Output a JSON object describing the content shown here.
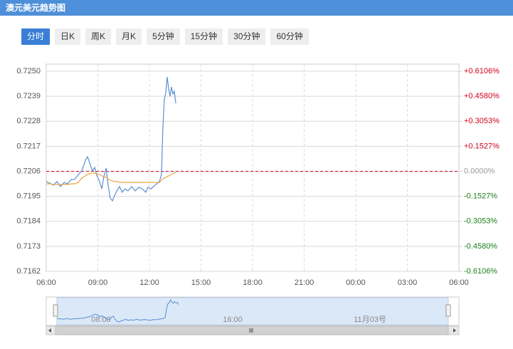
{
  "header": {
    "title": "澳元美元趋势图"
  },
  "tabs": [
    "分时",
    "日K",
    "周K",
    "月K",
    "5分钟",
    "15分钟",
    "30分钟",
    "60分钟"
  ],
  "active_tab": 0,
  "chart_data": {
    "type": "line",
    "x": [
      "06:00",
      "06:12",
      "06:25",
      "06:37",
      "06:50",
      "07:02",
      "07:14",
      "07:27",
      "07:39",
      "07:52",
      "08:04",
      "08:17",
      "08:24",
      "08:31",
      "08:41",
      "08:49",
      "08:56",
      "09:06",
      "09:14",
      "09:21",
      "09:29",
      "09:36",
      "09:43",
      "09:51",
      "09:58",
      "10:06",
      "10:16",
      "10:25",
      "10:35",
      "10:45",
      "10:58",
      "11:10",
      "11:23",
      "11:35",
      "11:47",
      "11:55",
      "12:05",
      "12:15",
      "12:25",
      "12:35",
      "12:42",
      "12:47",
      "12:52",
      "12:57",
      "13:02",
      "13:07",
      "13:12",
      "13:17",
      "13:22",
      "13:27",
      "13:32"
    ],
    "series": [
      {
        "color": "#5b8fd3",
        "values": [
          0.72015,
          0.72008,
          0.71999,
          0.72015,
          0.71993,
          0.72011,
          0.72005,
          0.72024,
          0.72024,
          0.72046,
          0.72062,
          0.72109,
          0.72124,
          0.72099,
          0.72062,
          0.72077,
          0.72043,
          0.72015,
          0.71983,
          0.72037,
          0.72074,
          0.71999,
          0.71943,
          0.7193,
          0.71952,
          0.71974,
          0.71993,
          0.71968,
          0.71983,
          0.71974,
          0.71993,
          0.71974,
          0.7199,
          0.71983,
          0.71968,
          0.7199,
          0.71983,
          0.71993,
          0.72005,
          0.72015,
          0.72046,
          0.72249,
          0.72375,
          0.72406,
          0.72475,
          0.72422,
          0.7239,
          0.72431,
          0.724,
          0.72412,
          0.72359
        ]
      },
      {
        "color": "#e9a545",
        "values": [
          0.72005,
          0.72005,
          0.72002,
          0.72002,
          0.72002,
          0.72002,
          0.72002,
          0.72005,
          0.72005,
          0.72011,
          0.7203,
          0.7204,
          0.72046,
          0.72049,
          0.72052,
          0.72052,
          0.72049,
          0.72046,
          0.7204,
          0.72037,
          0.72033,
          0.72027,
          0.72021,
          0.72018,
          0.72015,
          0.72015,
          0.72011,
          0.72011,
          0.72011,
          0.72011,
          0.72011,
          0.72011,
          0.72011,
          0.72011,
          0.72011,
          0.72011,
          0.72011,
          0.72011,
          0.72011,
          0.72011,
          0.72021,
          0.72027,
          0.7203,
          0.72033,
          0.72037,
          0.7204,
          0.72043,
          0.72046,
          0.72049,
          0.72052,
          0.72055
        ]
      }
    ],
    "xlim": [
      "06:00",
      "06:00"
    ],
    "xticks": [
      "06:00",
      "09:00",
      "12:00",
      "15:00",
      "18:00",
      "21:00",
      "00:00",
      "03:00",
      "06:00"
    ],
    "ylim": [
      0.7162,
      0.725
    ],
    "yticks": [
      {
        "value": 0.725,
        "label": "0.7250"
      },
      0.7239,
      0.7228,
      0.7217,
      0.7206,
      0.7195,
      0.7184,
      0.7173,
      0.7162
    ],
    "y2lim": [
      -0.6106,
      0.6106
    ],
    "y2ticks": [
      {
        "value": 0.6106,
        "label": "+0.6106%"
      },
      {
        "value": 0.458,
        "label": "+0.4580%"
      },
      {
        "value": 0.3053,
        "label": "+0.3053%"
      },
      {
        "value": 0.1527,
        "label": "+0.1527%"
      },
      {
        "value": 0,
        "label": "0.0000%"
      },
      {
        "value": -0.1527,
        "label": "-0.1527%"
      },
      {
        "value": -0.3053,
        "label": "-0.3053%"
      },
      {
        "value": -0.458,
        "label": "-0.4580%"
      },
      {
        "value": -0.6106,
        "label": "-0.6106%"
      }
    ],
    "reference_line": 0.7206,
    "grid": true
  },
  "navigator": {
    "labels": [
      "08:00",
      "16:00",
      "11月03号"
    ]
  }
}
